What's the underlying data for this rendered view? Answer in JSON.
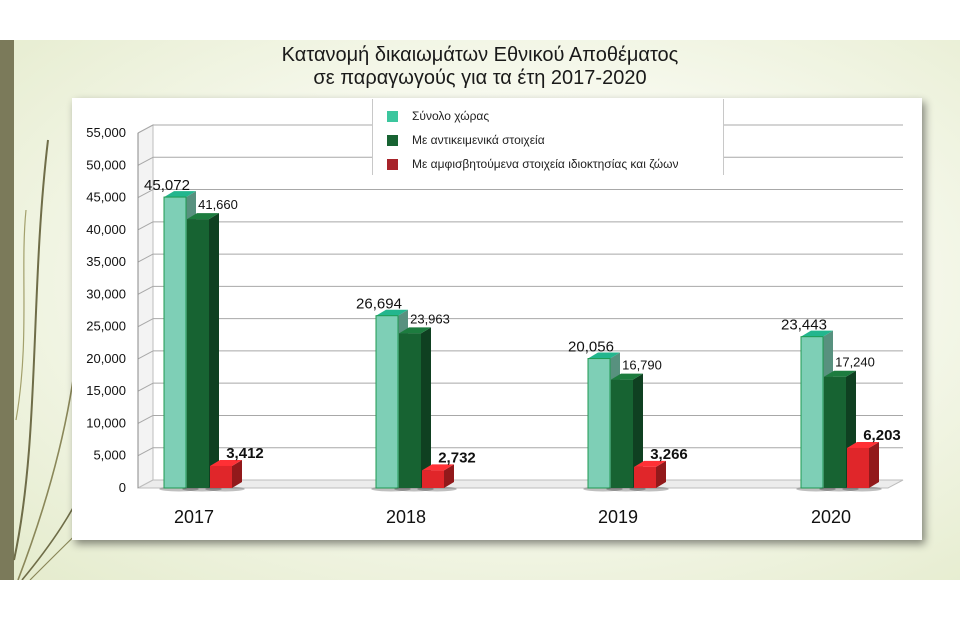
{
  "chart_data": {
    "type": "bar",
    "title_lines": [
      "Κατανομή δικαιωμάτων Εθνικού Αποθέματος",
      "σε παραγωγούς για τα έτη 2017-2020"
    ],
    "categories": [
      "2017",
      "2018",
      "2019",
      "2020"
    ],
    "series": [
      {
        "name": "Σύνολο χώρας",
        "color": "#7ecfb6",
        "values": [
          45072,
          26694,
          20056,
          23443
        ]
      },
      {
        "name": "Με αντικειμενικά στοιχεία",
        "color": "#176332",
        "values": [
          41660,
          23963,
          16790,
          17240
        ]
      },
      {
        "name": "Με αμφισβητούμενα στοιχεία ιδιοκτησίας και ζώων",
        "color": "#e0262a",
        "values": [
          3412,
          2732,
          3266,
          6203
        ]
      }
    ],
    "value_labels": [
      [
        "45,072",
        "26,694",
        "20,056",
        "23,443"
      ],
      [
        "41,660",
        "23,963",
        "16,790",
        "17,240"
      ],
      [
        "3,412",
        "2,732",
        "3,266",
        "6,203"
      ]
    ],
    "y_ticks": [
      "0",
      "5,000",
      "10,000",
      "15,000",
      "20,000",
      "25,000",
      "30,000",
      "35,000",
      "40,000",
      "45,000",
      "50,000",
      "55,000"
    ],
    "ylim": [
      0,
      55000
    ],
    "y_step": 5000,
    "grid": true,
    "legend_position": "top-center",
    "xlabel": "",
    "ylabel": ""
  }
}
